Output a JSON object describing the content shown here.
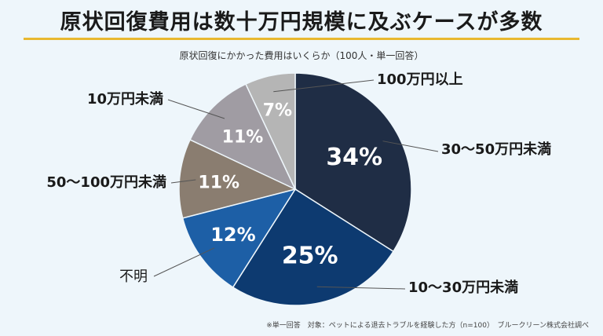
{
  "title": "原状回復費用は数十万円規模に及ぶケースが多数",
  "subtitle": "原状回復にかかった費用はいくらか（100人・単一回答）",
  "footnote": "※単一回答　対象：ペットによる退去トラブルを経験した方（n=100）　ブルークリーン株式会社調べ",
  "chart_data": {
    "type": "pie",
    "title": "原状回復費用は数十万円規模に及ぶケースが多数",
    "subtitle": "原状回復にかかった費用はいくらか（100人・単一回答）",
    "slices": [
      {
        "label": "30〜50万円未満",
        "value": 34,
        "value_label": "34%",
        "color": "#1f2d45"
      },
      {
        "label": "10〜30万円未満",
        "value": 25,
        "value_label": "25%",
        "color": "#0d3a70"
      },
      {
        "label": "不明",
        "value": 12,
        "value_label": "12%",
        "color": "#1d5fa6"
      },
      {
        "label": "50〜100万円未満",
        "value": 11,
        "value_label": "11%",
        "color": "#8a7d70"
      },
      {
        "label": "10万円未満",
        "value": 11,
        "value_label": "11%",
        "color": "#a09ca3"
      },
      {
        "label": "100万円以上",
        "value": 7,
        "value_label": "7%",
        "color": "#b5b5b5"
      }
    ],
    "start": "12 o'clock",
    "direction": "clockwise",
    "legend": "none"
  }
}
